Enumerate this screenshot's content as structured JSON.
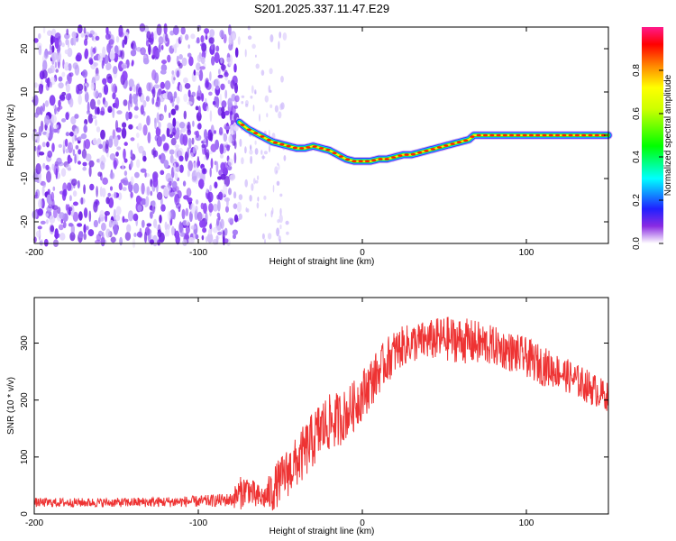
{
  "title": "S201.2025.337.11.47.E29",
  "chart_data": [
    {
      "type": "heatmap",
      "name": "spectrogram",
      "xlabel": "Height of straight line (km)",
      "ylabel": "Frequency (Hz)",
      "xlim": [
        -200,
        150
      ],
      "ylim": [
        -25,
        25
      ],
      "xticks": [
        -200,
        -100,
        0,
        100
      ],
      "yticks": [
        -20,
        -10,
        0,
        10,
        20
      ],
      "noise_region_x": [
        -200,
        -75
      ],
      "sparse_noise_region_x": [
        -75,
        -45
      ],
      "ridge": {
        "x": [
          -75,
          -70,
          -65,
          -60,
          -55,
          -50,
          -45,
          -40,
          -35,
          -30,
          -25,
          -20,
          -15,
          -10,
          -5,
          0,
          5,
          10,
          15,
          20,
          25,
          30,
          35,
          40,
          45,
          50,
          55,
          60,
          65,
          68,
          70,
          75,
          80,
          90,
          100,
          110,
          120,
          130,
          140,
          150
        ],
        "freq": [
          3,
          1.5,
          0.5,
          -0.5,
          -1.5,
          -2,
          -2.5,
          -3,
          -3,
          -2.5,
          -3,
          -3.5,
          -4.5,
          -5.5,
          -6,
          -6,
          -6,
          -5.5,
          -5.5,
          -5,
          -4.5,
          -4.5,
          -4,
          -3.5,
          -3,
          -2.5,
          -2,
          -1.5,
          -1,
          0,
          0,
          0,
          0,
          0,
          0,
          0,
          0,
          0,
          0,
          0
        ]
      },
      "colorbar": {
        "label": "Normalized spectral amplitude",
        "range": [
          0,
          1
        ],
        "ticks": [
          0.0,
          0.2,
          0.4,
          0.6,
          0.8
        ],
        "tick_labels": [
          "0.0",
          "0.2",
          "0.4",
          "0.6",
          "0.8"
        ]
      }
    },
    {
      "type": "line",
      "name": "snr",
      "xlabel": "Height of straight line (km)",
      "ylabel": "SNR (10 * v/v)",
      "xlim": [
        -200,
        150
      ],
      "ylim": [
        0,
        380
      ],
      "xticks": [
        -200,
        -100,
        0,
        100
      ],
      "yticks": [
        0,
        100,
        200,
        300
      ],
      "color": "#ee3333",
      "envelope": {
        "x": [
          -200,
          -150,
          -100,
          -80,
          -75,
          -70,
          -65,
          -60,
          -55,
          -50,
          -45,
          -40,
          -35,
          -30,
          -25,
          -20,
          -15,
          -10,
          -5,
          0,
          5,
          10,
          15,
          20,
          25,
          30,
          40,
          50,
          60,
          70,
          80,
          90,
          100,
          110,
          120,
          130,
          140,
          150
        ],
        "mean": [
          20,
          20,
          22,
          25,
          35,
          45,
          30,
          28,
          40,
          60,
          75,
          90,
          110,
          130,
          150,
          160,
          165,
          175,
          190,
          210,
          230,
          250,
          270,
          285,
          295,
          300,
          305,
          308,
          305,
          300,
          295,
          285,
          275,
          260,
          250,
          235,
          220,
          205
        ],
        "amplitude": [
          8,
          8,
          10,
          12,
          30,
          25,
          25,
          20,
          40,
          40,
          45,
          45,
          50,
          50,
          55,
          50,
          50,
          45,
          45,
          45,
          45,
          40,
          40,
          40,
          35,
          35,
          35,
          40,
          40,
          40,
          35,
          35,
          35,
          35,
          30,
          30,
          30,
          25
        ]
      }
    }
  ]
}
